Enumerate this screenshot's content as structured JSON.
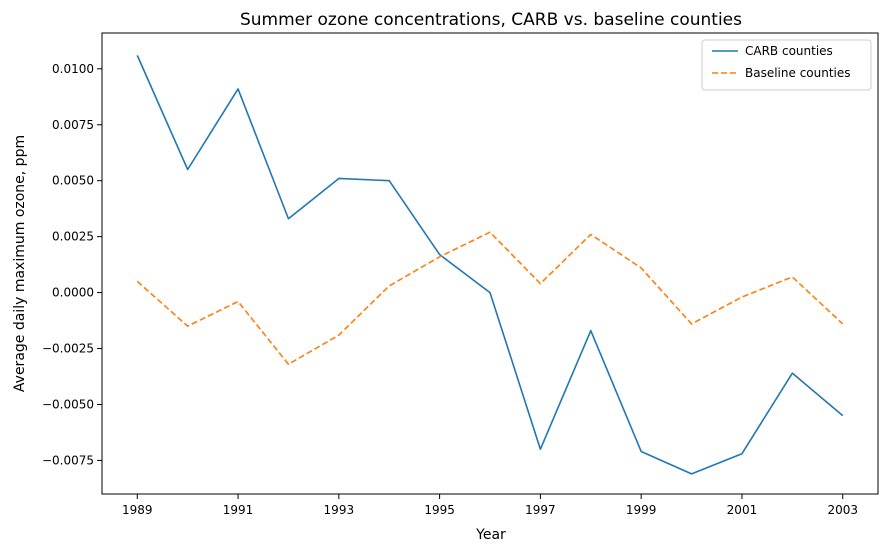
{
  "chart_data": {
    "type": "line",
    "title": "Summer ozone concentrations, CARB vs. baseline counties",
    "xlabel": "Year",
    "ylabel": "Average daily maximum ozone, ppm",
    "x": [
      1989,
      1990,
      1991,
      1992,
      1993,
      1994,
      1995,
      1996,
      1997,
      1998,
      1999,
      2000,
      2001,
      2002,
      2003
    ],
    "xticks": [
      "1989",
      "1991",
      "1993",
      "1995",
      "1997",
      "1999",
      "2001",
      "2003"
    ],
    "yticks": [
      "−0.0075",
      "−0.0050",
      "−0.0025",
      "0.0000",
      "0.0025",
      "0.0050",
      "0.0075",
      "0.0100"
    ],
    "xlim": [
      1988.3,
      2003.7
    ],
    "ylim": [
      -0.009,
      0.0116
    ],
    "grid": false,
    "legend_position": "top-right",
    "series": [
      {
        "name": "CARB counties",
        "color": "#1f77b4",
        "style": "solid",
        "values": [
          0.0106,
          0.0055,
          0.0091,
          0.0033,
          0.0051,
          0.005,
          0.0017,
          0.0,
          -0.007,
          -0.0017,
          -0.0071,
          -0.0081,
          -0.0072,
          -0.0036,
          -0.0055
        ]
      },
      {
        "name": "Baseline counties",
        "color": "#ff7f0e",
        "style": "dashed",
        "values": [
          0.0005,
          -0.0015,
          -0.0004,
          -0.0032,
          -0.0019,
          0.0003,
          0.0016,
          0.0027,
          0.0004,
          0.0026,
          0.0011,
          -0.0014,
          -0.0002,
          0.0007,
          -0.0014
        ]
      }
    ]
  }
}
